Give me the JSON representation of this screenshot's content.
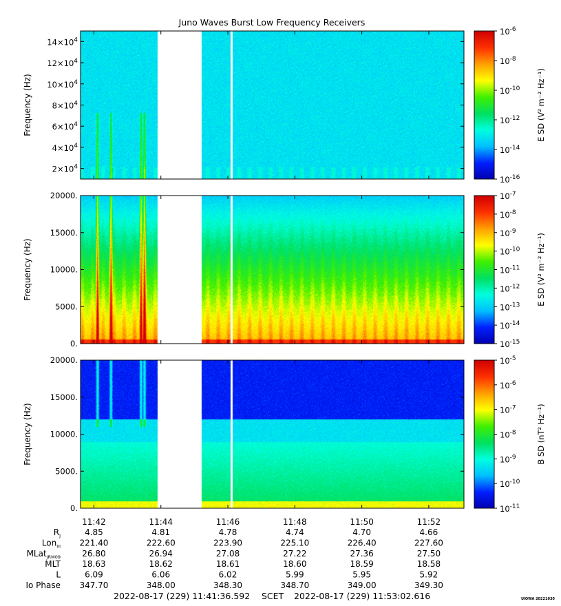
{
  "title": "Juno Waves Burst Low Frequency Receivers",
  "colors": {
    "colorbar_stops": [
      "#0000b0",
      "#0020ff",
      "#00c0ff",
      "#00ffe0",
      "#00e060",
      "#40f000",
      "#ffff00",
      "#ffa000",
      "#ff3000",
      "#d00000"
    ],
    "gap": "#ffffff"
  },
  "chart_data": [
    {
      "type": "heatmap",
      "panel": "top",
      "ylabel": "Frequency (Hz)",
      "y_ticks": [
        {
          "value": 20000,
          "base": "2×10",
          "exp": "4"
        },
        {
          "value": 40000,
          "base": "4×10",
          "exp": "4"
        },
        {
          "value": 60000,
          "base": "6×10",
          "exp": "4"
        },
        {
          "value": 80000,
          "base": "8×10",
          "exp": "4"
        },
        {
          "value": 100000,
          "base": "10×10",
          "exp": "4"
        },
        {
          "value": 120000,
          "base": "12×10",
          "exp": "4"
        },
        {
          "value": 140000,
          "base": "14×10",
          "exp": "4"
        }
      ],
      "ylim": [
        10000,
        150000
      ],
      "colorbar_label": "E SD (V² m⁻² Hz⁻¹)",
      "colorbar_ticks": [
        {
          "base": "10",
          "exp": "-6"
        },
        {
          "base": "10",
          "exp": "-8"
        },
        {
          "base": "10",
          "exp": "-10"
        },
        {
          "base": "10",
          "exp": "-12"
        },
        {
          "base": "10",
          "exp": "-14"
        },
        {
          "base": "10",
          "exp": "-16"
        }
      ],
      "colorbar_range_log": [
        -16,
        -6
      ],
      "background_level_log": -13.6,
      "data_gaps_min": [
        [
          43.9,
          45.2
        ],
        [
          46.08,
          46.12
        ]
      ]
    },
    {
      "type": "heatmap",
      "panel": "middle",
      "ylabel": "Frequency (Hz)",
      "y_ticks": [
        {
          "value": 0,
          "label": "0."
        },
        {
          "value": 5000,
          "label": "5000."
        },
        {
          "value": 10000,
          "label": "10000."
        },
        {
          "value": 15000,
          "label": "15000."
        },
        {
          "value": 20000,
          "label": "20000."
        }
      ],
      "ylim": [
        0,
        20000
      ],
      "colorbar_label": "E SD (V² m⁻² Hz⁻¹)",
      "colorbar_ticks": [
        {
          "base": "10",
          "exp": "-7"
        },
        {
          "base": "10",
          "exp": "-8"
        },
        {
          "base": "10",
          "exp": "-9"
        },
        {
          "base": "10",
          "exp": "-10"
        },
        {
          "base": "10",
          "exp": "-11"
        },
        {
          "base": "10",
          "exp": "-12"
        },
        {
          "base": "10",
          "exp": "-13"
        },
        {
          "base": "10",
          "exp": "-14"
        },
        {
          "base": "10",
          "exp": "-15"
        }
      ],
      "colorbar_range_log": [
        -15,
        -7
      ],
      "data_gaps_min": [
        [
          43.9,
          45.2
        ],
        [
          46.08,
          46.12
        ]
      ]
    },
    {
      "type": "heatmap",
      "panel": "bottom",
      "ylabel": "Frequency (Hz)",
      "y_ticks": [
        {
          "value": 0,
          "label": "0."
        },
        {
          "value": 5000,
          "label": "5000."
        },
        {
          "value": 10000,
          "label": "10000."
        },
        {
          "value": 15000,
          "label": "15000."
        },
        {
          "value": 20000,
          "label": "20000."
        }
      ],
      "ylim": [
        0,
        20000
      ],
      "colorbar_label": "B SD (nT² Hz⁻¹)",
      "colorbar_ticks": [
        {
          "base": "10",
          "exp": "-5"
        },
        {
          "base": "10",
          "exp": "-6"
        },
        {
          "base": "10",
          "exp": "-7"
        },
        {
          "base": "10",
          "exp": "-8"
        },
        {
          "base": "10",
          "exp": "-9"
        },
        {
          "base": "10",
          "exp": "-10"
        },
        {
          "base": "10",
          "exp": "-11"
        }
      ],
      "colorbar_range_log": [
        -11,
        -4.5
      ],
      "data_gaps_min": [
        [
          43.9,
          45.2
        ],
        [
          46.08,
          46.12
        ]
      ]
    }
  ],
  "time_axis": {
    "range_min": [
      41.6,
      53.05
    ],
    "ticks": [
      {
        "minute": 42,
        "label": "11:42"
      },
      {
        "minute": 44,
        "label": "11:44"
      },
      {
        "minute": 46,
        "label": "11:46"
      },
      {
        "minute": 48,
        "label": "11:48"
      },
      {
        "minute": 50,
        "label": "11:50"
      },
      {
        "minute": 52,
        "label": "11:52"
      }
    ]
  },
  "ephemeris": [
    {
      "label": "R",
      "sub": "J",
      "values": [
        "4.85",
        "4.81",
        "4.78",
        "4.74",
        "4.70",
        "4.66"
      ]
    },
    {
      "label": "Lon",
      "sub": "III",
      "values": [
        "221.40",
        "222.60",
        "223.90",
        "225.10",
        "226.40",
        "227.60"
      ]
    },
    {
      "label": "MLat",
      "sub": "JRM09",
      "values": [
        "26.80",
        "26.94",
        "27.08",
        "27.22",
        "27.36",
        "27.50"
      ]
    },
    {
      "label": "MLT",
      "sub": "",
      "values": [
        "18.63",
        "18.62",
        "18.61",
        "18.60",
        "18.59",
        "18.58"
      ]
    },
    {
      "label": "L",
      "sub": "",
      "values": [
        "6.09",
        "6.06",
        "6.02",
        "5.99",
        "5.95",
        "5.92"
      ]
    },
    {
      "label": "Io Phase",
      "sub": "",
      "values": [
        "347.70",
        "348.00",
        "348.30",
        "348.70",
        "349.00",
        "349.30"
      ]
    }
  ],
  "footer": {
    "start": "2022-08-17 (229) 11:41:36.592",
    "scet": "SCET",
    "end": "2022-08-17 (229) 11:53:02.616",
    "stamp": "UIOWA 20221030"
  }
}
